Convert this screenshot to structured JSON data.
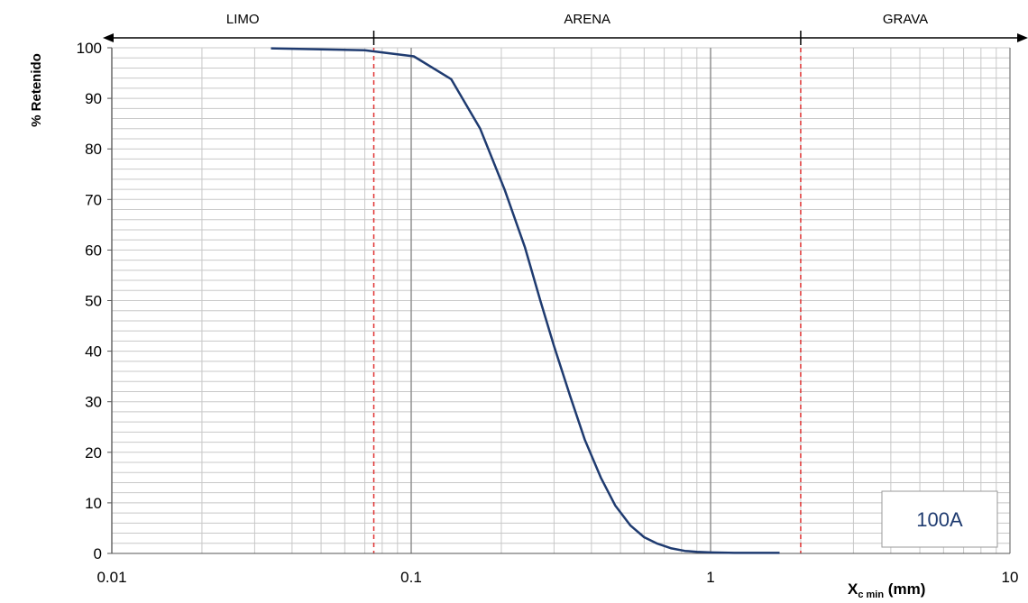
{
  "chart_data": {
    "type": "line",
    "xscale": "log",
    "xlim": [
      0.01,
      10
    ],
    "ylim": [
      0,
      100
    ],
    "x_ticks": [
      "0.01",
      "0.1",
      "1",
      "10"
    ],
    "y_ticks": [
      "0",
      "10",
      "20",
      "30",
      "40",
      "50",
      "60",
      "70",
      "80",
      "90",
      "100"
    ],
    "ylabel": "% Retenido",
    "xlabel": {
      "main": "X",
      "sub": "c min",
      "unit": " (mm)"
    },
    "regions": [
      {
        "label": "LIMO",
        "from": 0.01,
        "to": 0.075
      },
      {
        "label": "ARENA",
        "from": 0.075,
        "to": 2.0
      },
      {
        "label": "GRAVA",
        "from": 2.0,
        "to": 10
      }
    ],
    "boundaries": [
      0.075,
      2.0
    ],
    "grid": true,
    "annotation": "100A",
    "colors": {
      "line": "#1f3b70",
      "boundary": "#e03030",
      "grid": "#c8c8c8",
      "major_grid": "#909090"
    },
    "series": [
      {
        "x": [
          0.034,
          0.05,
          0.07,
          0.085,
          0.102,
          0.136,
          0.17,
          0.205,
          0.24,
          0.27,
          0.3,
          0.34,
          0.38,
          0.43,
          0.48,
          0.54,
          0.6,
          0.66,
          0.74,
          0.82,
          0.9,
          1.0,
          1.2,
          1.7
        ],
        "values": [
          99.9,
          99.7,
          99.5,
          98.9,
          98.3,
          93.8,
          84.0,
          72.0,
          60.5,
          50.0,
          41.0,
          31.0,
          22.5,
          15.0,
          9.5,
          5.5,
          3.2,
          2.0,
          1.0,
          0.5,
          0.3,
          0.2,
          0.1,
          0.1
        ]
      }
    ]
  }
}
